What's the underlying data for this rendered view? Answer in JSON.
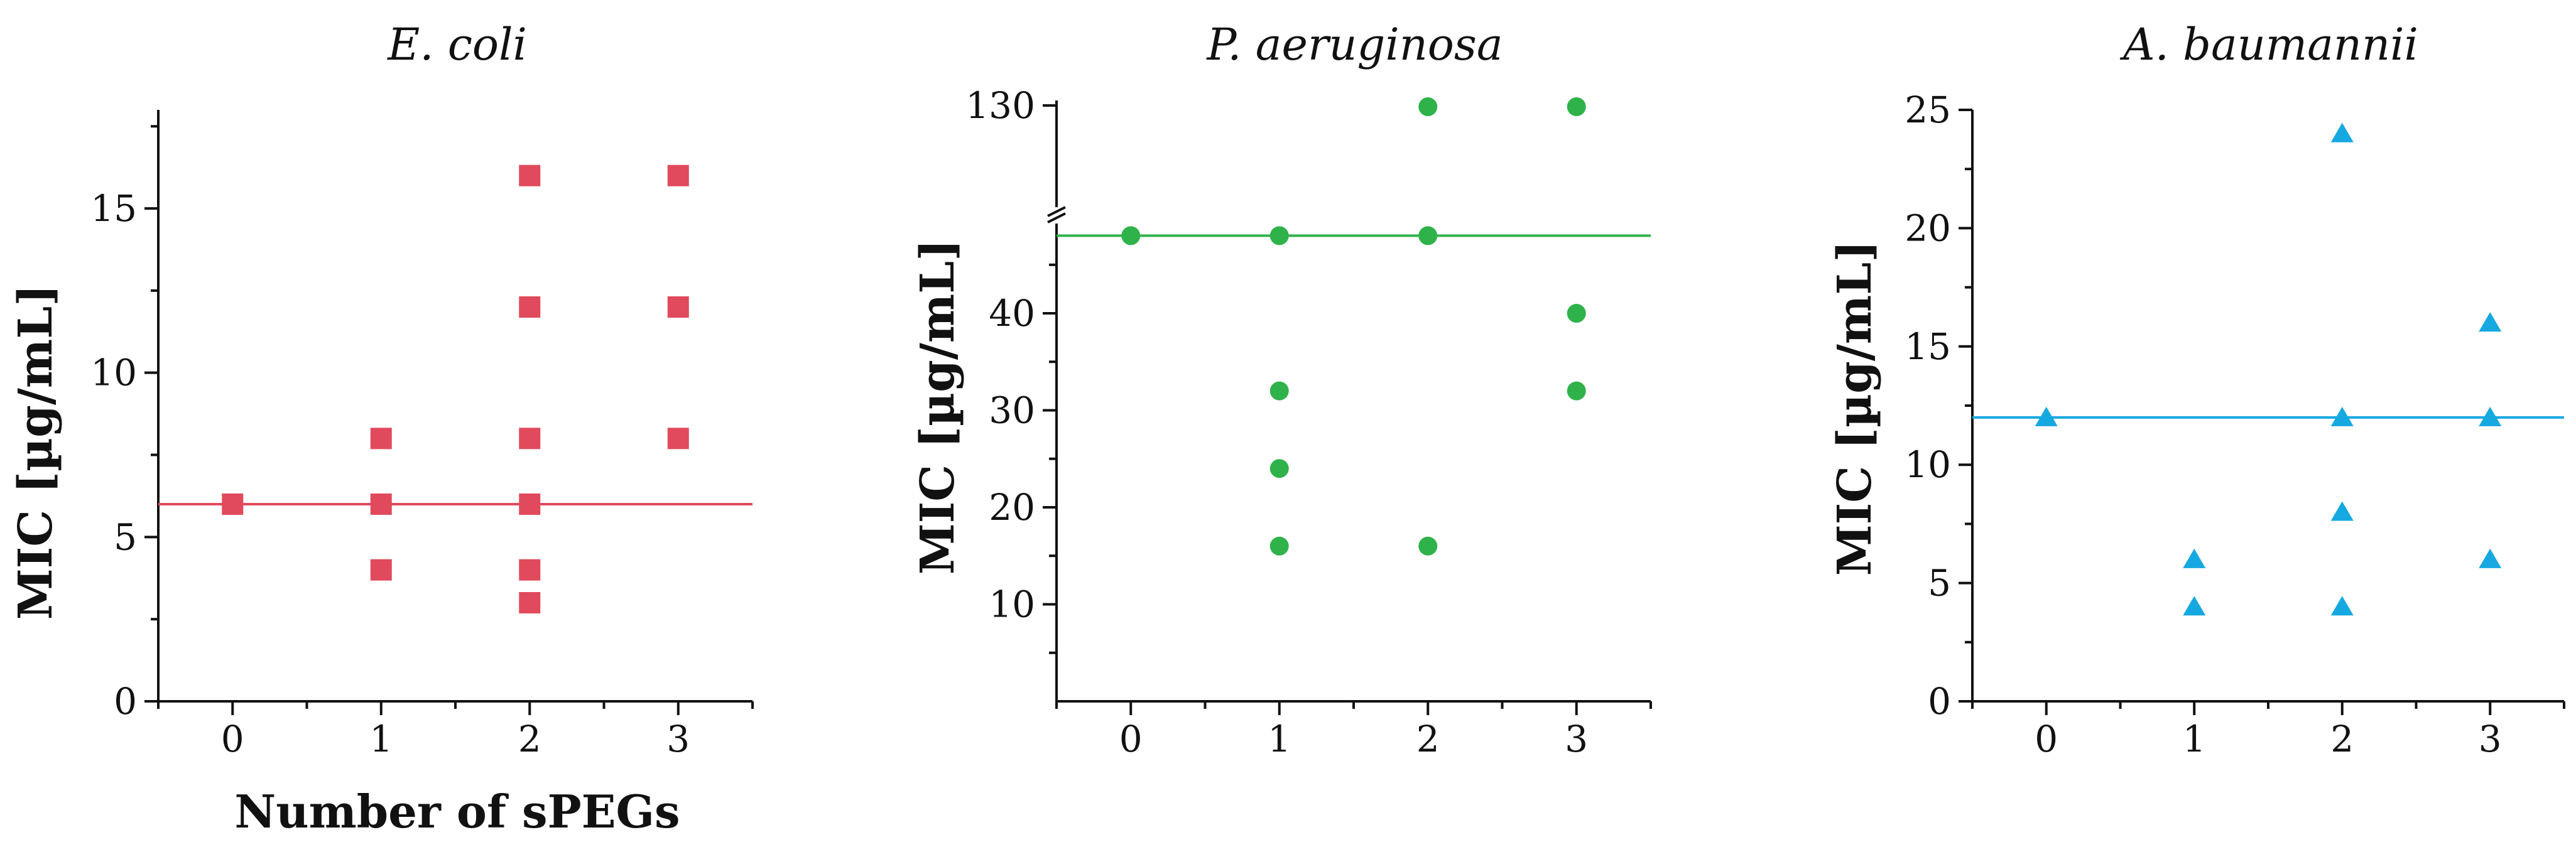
{
  "colors": {
    "ecoli": "#e14a5c",
    "paeruginosa": "#2fb24a",
    "abaumannii": "#16a8e0",
    "axis": "#111111"
  },
  "shared_xlabel": "Number of sPEGs",
  "chart_data": [
    {
      "type": "scatter",
      "title": "E. coli",
      "xlabel": "Number of sPEGs",
      "ylabel": "MIC [µg/mL]",
      "marker": "square",
      "color": "#e14a5c",
      "xlim": [
        -0.5,
        3.5
      ],
      "ylim": [
        0,
        18
      ],
      "xticks": [
        "0",
        "1",
        "2",
        "3"
      ],
      "yticks": [
        0,
        5,
        10,
        15
      ],
      "yticklabels": [
        "0",
        "5",
        "10",
        "15"
      ],
      "reference_line": 6,
      "points": [
        {
          "x": 0,
          "y": 6
        },
        {
          "x": 1,
          "y": 4
        },
        {
          "x": 1,
          "y": 6
        },
        {
          "x": 1,
          "y": 8
        },
        {
          "x": 2,
          "y": 3
        },
        {
          "x": 2,
          "y": 4
        },
        {
          "x": 2,
          "y": 6
        },
        {
          "x": 2,
          "y": 8
        },
        {
          "x": 2,
          "y": 12
        },
        {
          "x": 2,
          "y": 16
        },
        {
          "x": 3,
          "y": 8
        },
        {
          "x": 3,
          "y": 12
        },
        {
          "x": 3,
          "y": 16
        }
      ]
    },
    {
      "type": "scatter",
      "title": "P. aeruginosa",
      "xlabel": "",
      "ylabel": "MIC [µg/mL]",
      "marker": "circle",
      "color": "#2fb24a",
      "xlim": [
        -0.5,
        3.5
      ],
      "ylim": [
        0,
        130
      ],
      "axis_break": true,
      "xticks": [
        "0",
        "1",
        "2",
        "3"
      ],
      "yticks": [
        10,
        20,
        30,
        40,
        130
      ],
      "yticklabels": [
        "10",
        "20",
        "30",
        "40",
        "130"
      ],
      "reference_line": 48,
      "points": [
        {
          "x": 0,
          "y": 48
        },
        {
          "x": 1,
          "y": 16
        },
        {
          "x": 1,
          "y": 24
        },
        {
          "x": 1,
          "y": 32
        },
        {
          "x": 1,
          "y": 48
        },
        {
          "x": 2,
          "y": 16
        },
        {
          "x": 2,
          "y": 48
        },
        {
          "x": 2,
          "y": 128
        },
        {
          "x": 3,
          "y": 32
        },
        {
          "x": 3,
          "y": 40
        },
        {
          "x": 3,
          "y": 128
        }
      ]
    },
    {
      "type": "scatter",
      "title": "A. baumannii",
      "xlabel": "",
      "ylabel": "MIC [µg/mL]",
      "marker": "triangle",
      "color": "#16a8e0",
      "xlim": [
        -0.5,
        3.5
      ],
      "ylim": [
        0,
        25
      ],
      "xticks": [
        "0",
        "1",
        "2",
        "3"
      ],
      "yticks": [
        0,
        5,
        10,
        15,
        20,
        25
      ],
      "yticklabels": [
        "0",
        "5",
        "10",
        "15",
        "20",
        "25"
      ],
      "reference_line": 12,
      "points": [
        {
          "x": 0,
          "y": 12
        },
        {
          "x": 1,
          "y": 4
        },
        {
          "x": 1,
          "y": 6
        },
        {
          "x": 2,
          "y": 4
        },
        {
          "x": 2,
          "y": 8
        },
        {
          "x": 2,
          "y": 12
        },
        {
          "x": 2,
          "y": 24
        },
        {
          "x": 3,
          "y": 6
        },
        {
          "x": 3,
          "y": 12
        },
        {
          "x": 3,
          "y": 16
        }
      ]
    }
  ]
}
